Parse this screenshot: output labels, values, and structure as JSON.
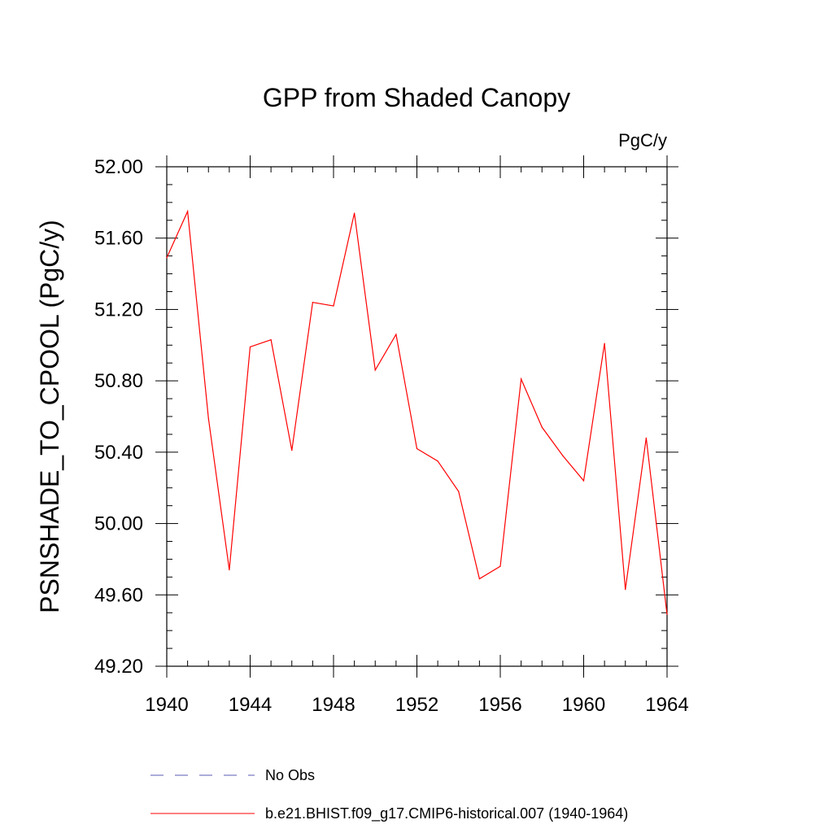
{
  "chart_data": {
    "type": "line",
    "title": "GPP from Shaded Canopy",
    "units": "PgC/y",
    "ylabel": "PSNSHADE_TO_CPOOL  (PgC/y)",
    "xlabel": "",
    "xlim": [
      1940,
      1964
    ],
    "ylim": [
      49.2,
      52.0
    ],
    "xticks": [
      1940,
      1944,
      1948,
      1952,
      1956,
      1960,
      1964
    ],
    "yticks": [
      "49.20",
      "49.60",
      "50.00",
      "50.40",
      "50.80",
      "51.20",
      "51.60",
      "52.00"
    ],
    "grid": false,
    "legend_position": "bottom",
    "series": [
      {
        "name": "No Obs",
        "color": "#5a5ab4",
        "dash": "dashed",
        "values": []
      },
      {
        "name": "b.e21.BHIST.f09_g17.CMIP6-historical.007 (1940-1964)",
        "color": "#ff0000",
        "dash": "solid",
        "x": [
          1940,
          1941,
          1942,
          1943,
          1944,
          1945,
          1946,
          1947,
          1948,
          1949,
          1950,
          1951,
          1952,
          1953,
          1954,
          1955,
          1956,
          1957,
          1958,
          1959,
          1960,
          1961,
          1962,
          1963,
          1964
        ],
        "values": [
          51.49,
          51.75,
          50.59,
          49.74,
          50.99,
          51.03,
          50.41,
          51.24,
          51.22,
          51.74,
          50.86,
          51.06,
          50.42,
          50.35,
          50.18,
          49.69,
          49.76,
          50.81,
          50.54,
          50.38,
          50.24,
          51.01,
          49.63,
          50.48,
          49.49
        ]
      }
    ]
  }
}
